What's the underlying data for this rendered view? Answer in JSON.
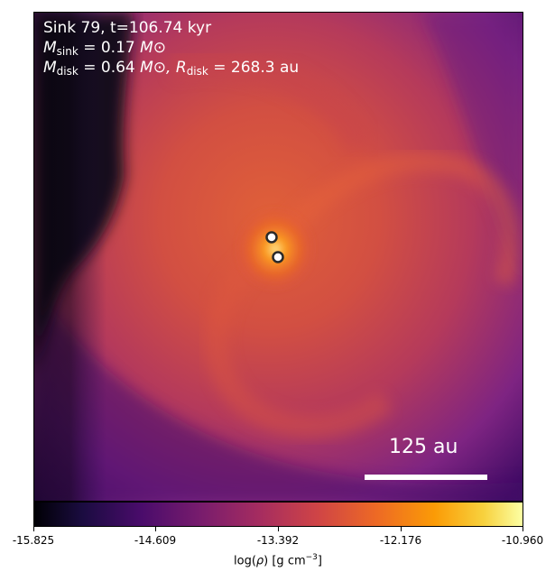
{
  "annotation": {
    "title": "Sink 79, t=106.74 kyr",
    "m_sink_symbol": "M",
    "m_sink_sub": "sink",
    "m_sink_value": "= 0.17",
    "m_sink_unit": "M⊙",
    "m_disk_symbol": "M",
    "m_disk_sub": "disk",
    "m_disk_value": "= 0.64",
    "m_disk_unit": "M⊙,",
    "r_disk_symbol": "R",
    "r_disk_sub": "disk",
    "r_disk_value": "= 268.3 au"
  },
  "scale_bar": {
    "label": "125 au"
  },
  "colorbar": {
    "colormap": "inferno",
    "ticks": [
      "-15.825",
      "-14.609",
      "-13.392",
      "-12.176",
      "-10.960"
    ],
    "label_prefix": "log(",
    "label_rho": "ρ",
    "label_mid": ") [g cm",
    "label_exp": "−3",
    "label_suffix": "]"
  },
  "sinks": [
    {
      "name": "sink-1"
    },
    {
      "name": "sink-2"
    }
  ],
  "colors": {
    "background_dark": "#000004",
    "purple": "#56106e",
    "magenta": "#8c2981",
    "orange_red": "#dd513a",
    "orange": "#f57d15",
    "yellow": "#fcffa4"
  }
}
